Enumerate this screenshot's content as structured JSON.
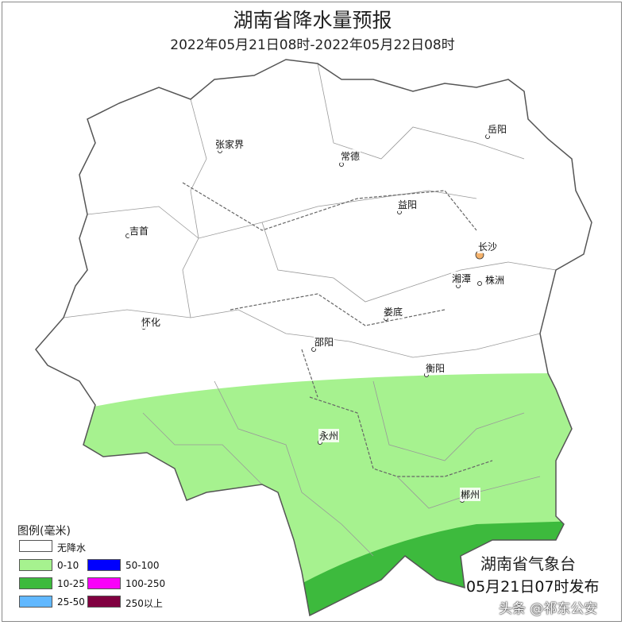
{
  "title": "湖南省降水量预报",
  "subtitle": "2022年05月21日08时-2022年05月22日08时",
  "cities": [
    "张家界",
    "常德",
    "岳阳",
    "益阳",
    "吉首",
    "长沙",
    "湘潭",
    "株洲",
    "怀化",
    "娄底",
    "邵阳",
    "衡阳",
    "永州",
    "郴州"
  ],
  "legend": {
    "title": "图例(毫米)",
    "items": [
      {
        "label": "无降水",
        "color": "#ffffff"
      },
      {
        "label": "0-10",
        "color": "#a6f28f"
      },
      {
        "label": "10-25",
        "color": "#3dba3d"
      },
      {
        "label": "25-50",
        "color": "#61b8ff"
      },
      {
        "label": "50-100",
        "color": "#0000fe"
      },
      {
        "label": "100-250",
        "color": "#fa00fa"
      },
      {
        "label": "250以上",
        "color": "#800040"
      }
    ]
  },
  "agency": "湖南省气象台",
  "issued": "05月21日07时发布",
  "watermark": "头条 @祁东公安"
}
